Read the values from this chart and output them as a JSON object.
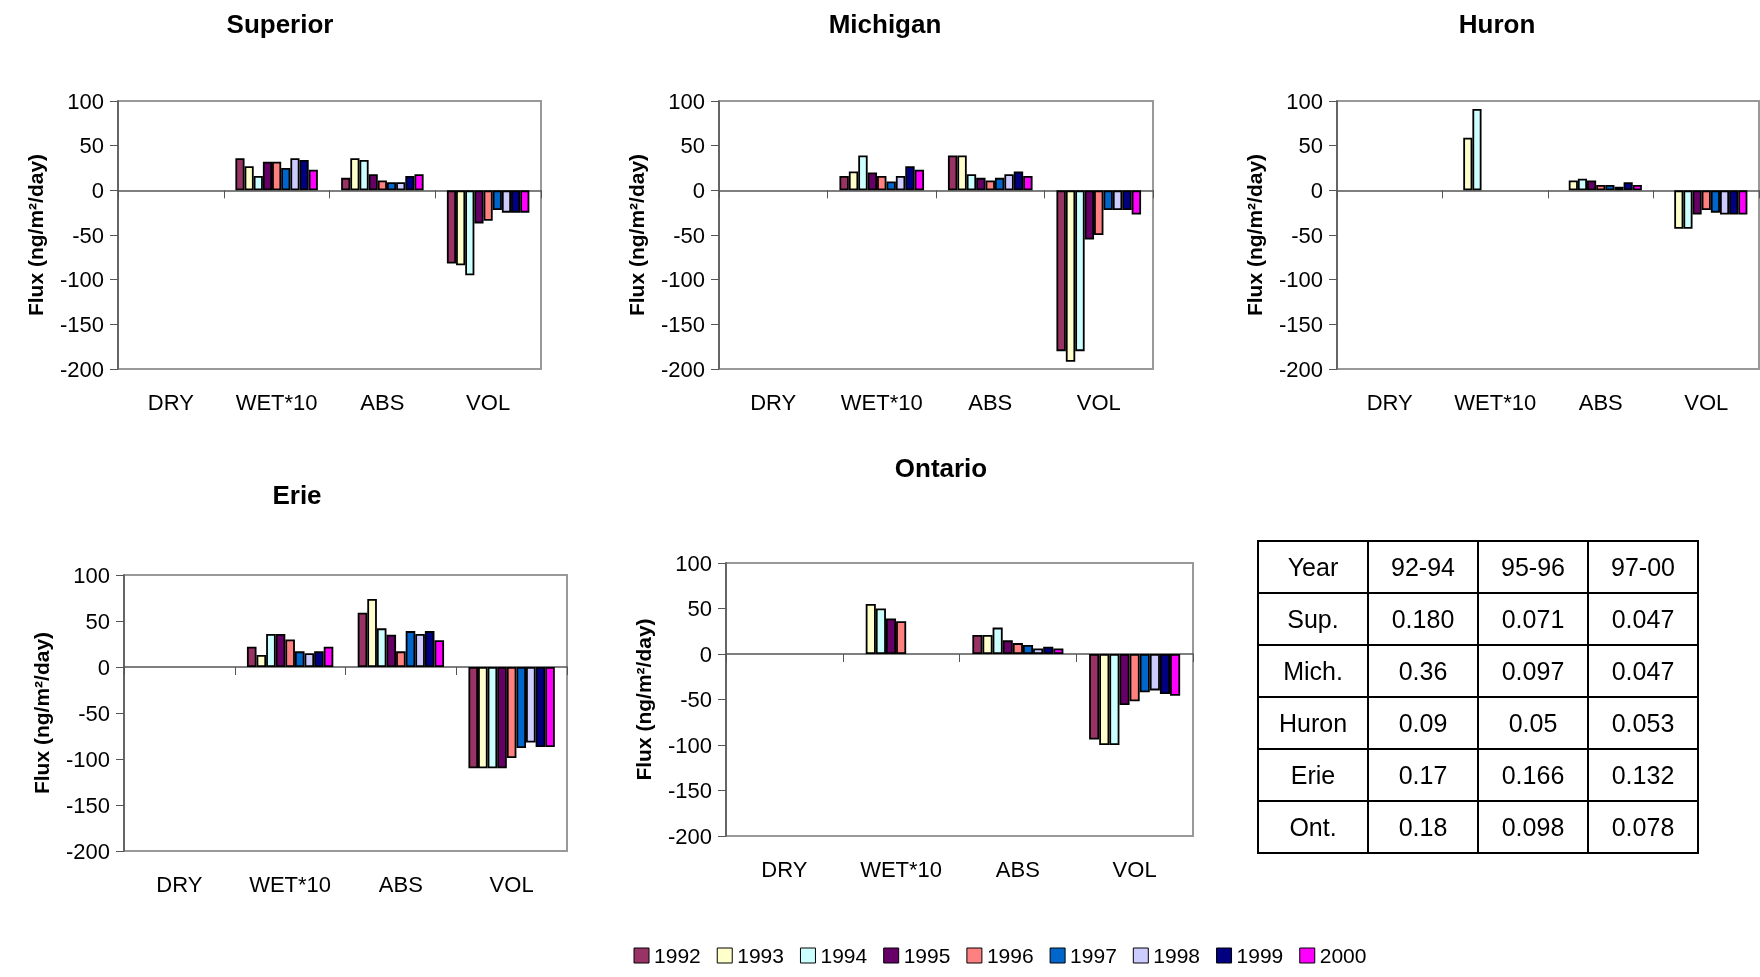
{
  "chart_data": [
    {
      "type": "bar",
      "title": "Superior",
      "ylabel": "Flux (ng/m²/day)",
      "categories": [
        "DRY",
        "WET*10",
        "ABS",
        "VOL"
      ],
      "ylim": [
        -200,
        100
      ],
      "yticks": [
        -200,
        -150,
        -100,
        -50,
        0,
        50,
        100
      ],
      "series": [
        {
          "color": "#993366",
          "values": [
            null,
            36,
            14,
            -82
          ]
        },
        {
          "color": "#ffffcc",
          "values": [
            null,
            27,
            36,
            -84
          ]
        },
        {
          "color": "#ccffff",
          "values": [
            null,
            16,
            34,
            -95
          ]
        },
        {
          "color": "#660066",
          "values": [
            null,
            32,
            18,
            -37
          ]
        },
        {
          "color": "#ff8080",
          "values": [
            null,
            32,
            11,
            -34
          ]
        },
        {
          "color": "#0066cc",
          "values": [
            null,
            25,
            9,
            -22
          ]
        },
        {
          "color": "#ccccff",
          "values": [
            null,
            36,
            9,
            -25
          ]
        },
        {
          "color": "#000080",
          "values": [
            null,
            34,
            16,
            -25
          ]
        },
        {
          "color": "#ff00ff",
          "values": [
            null,
            23,
            18,
            -25
          ]
        }
      ]
    },
    {
      "type": "bar",
      "title": "Michigan",
      "ylabel": "Flux (ng/m²/day)",
      "categories": [
        "DRY",
        "WET*10",
        "ABS",
        "VOL"
      ],
      "ylim": [
        -200,
        100
      ],
      "yticks": [
        -200,
        -150,
        -100,
        -50,
        0,
        50,
        100
      ],
      "series": [
        {
          "color": "#993366",
          "values": [
            null,
            16,
            39,
            -180
          ]
        },
        {
          "color": "#ffffcc",
          "values": [
            null,
            21,
            39,
            -192
          ]
        },
        {
          "color": "#ccffff",
          "values": [
            null,
            39,
            18,
            -180
          ]
        },
        {
          "color": "#660066",
          "values": [
            null,
            20,
            14,
            -55
          ]
        },
        {
          "color": "#ff8080",
          "values": [
            null,
            16,
            11,
            -50
          ]
        },
        {
          "color": "#0066cc",
          "values": [
            null,
            10,
            14,
            -22
          ]
        },
        {
          "color": "#ccccff",
          "values": [
            null,
            16,
            18,
            -22
          ]
        },
        {
          "color": "#000080",
          "values": [
            null,
            27,
            21,
            -22
          ]
        },
        {
          "color": "#ff00ff",
          "values": [
            null,
            23,
            16,
            -27
          ]
        }
      ]
    },
    {
      "type": "bar",
      "title": "Huron",
      "ylabel": "Flux (ng/m²/day)",
      "categories": [
        "DRY",
        "WET*10",
        "ABS",
        "VOL"
      ],
      "ylim": [
        -200,
        100
      ],
      "yticks": [
        -200,
        -150,
        -100,
        -50,
        0,
        50,
        100
      ],
      "series": [
        {
          "color": "#993366",
          "values": [
            null,
            null,
            null,
            null
          ]
        },
        {
          "color": "#ffffcc",
          "values": [
            null,
            59,
            11,
            -43
          ]
        },
        {
          "color": "#ccffff",
          "values": [
            null,
            91,
            13,
            -43
          ]
        },
        {
          "color": "#660066",
          "values": [
            null,
            null,
            11,
            -27
          ]
        },
        {
          "color": "#ff8080",
          "values": [
            null,
            null,
            6,
            -22
          ]
        },
        {
          "color": "#0066cc",
          "values": [
            null,
            null,
            6,
            -25
          ]
        },
        {
          "color": "#ccccff",
          "values": [
            null,
            null,
            4,
            -27
          ]
        },
        {
          "color": "#000080",
          "values": [
            null,
            null,
            9,
            -27
          ]
        },
        {
          "color": "#ff00ff",
          "values": [
            null,
            null,
            6,
            -27
          ]
        }
      ]
    },
    {
      "type": "bar",
      "title": "Erie",
      "ylabel": "Flux (ng/m²/day)",
      "categories": [
        "DRY",
        "WET*10",
        "ABS",
        "VOL"
      ],
      "ylim": [
        -200,
        100
      ],
      "yticks": [
        -200,
        -150,
        -100,
        -50,
        0,
        50,
        100
      ],
      "series": [
        {
          "color": "#993366",
          "values": [
            null,
            22,
            59,
            -110
          ]
        },
        {
          "color": "#ffffcc",
          "values": [
            null,
            13,
            74,
            -110
          ]
        },
        {
          "color": "#ccffff",
          "values": [
            null,
            36,
            42,
            -110
          ]
        },
        {
          "color": "#660066",
          "values": [
            null,
            36,
            35,
            -110
          ]
        },
        {
          "color": "#ff8080",
          "values": [
            null,
            30,
            17,
            -99
          ]
        },
        {
          "color": "#0066cc",
          "values": [
            null,
            17,
            39,
            -88
          ]
        },
        {
          "color": "#ccccff",
          "values": [
            null,
            15,
            36,
            -82
          ]
        },
        {
          "color": "#000080",
          "values": [
            null,
            17,
            39,
            -87
          ]
        },
        {
          "color": "#ff00ff",
          "values": [
            null,
            22,
            29,
            -87
          ]
        }
      ]
    },
    {
      "type": "bar",
      "title": "Ontario",
      "ylabel": "Flux (ng/m²/day)",
      "categories": [
        "DRY",
        "WET*10",
        "ABS",
        "VOL"
      ],
      "ylim": [
        -200,
        100
      ],
      "yticks": [
        -200,
        -150,
        -100,
        -50,
        0,
        50,
        100
      ],
      "legend": "bottom",
      "series": [
        {
          "name": "1992",
          "color": "#993366",
          "values": [
            null,
            null,
            21,
            -94
          ]
        },
        {
          "name": "1993",
          "color": "#ffffcc",
          "values": [
            null,
            55,
            21,
            -100
          ]
        },
        {
          "name": "1994",
          "color": "#ccffff",
          "values": [
            null,
            50,
            29,
            -100
          ]
        },
        {
          "name": "1995",
          "color": "#660066",
          "values": [
            null,
            39,
            15,
            -56
          ]
        },
        {
          "name": "1996",
          "color": "#ff8080",
          "values": [
            null,
            36,
            12,
            -52
          ]
        },
        {
          "name": "1997",
          "color": "#0066cc",
          "values": [
            null,
            null,
            10,
            -42
          ]
        },
        {
          "name": "1998",
          "color": "#ccccff",
          "values": [
            null,
            null,
            6,
            -40
          ]
        },
        {
          "name": "1999",
          "color": "#000080",
          "values": [
            null,
            null,
            8,
            -44
          ]
        },
        {
          "name": "2000",
          "color": "#ff00ff",
          "values": [
            null,
            null,
            6,
            -46
          ]
        }
      ]
    },
    {
      "type": "other",
      "ylabel": "Year",
      "categories": [
        "92-94",
        "95-96",
        "97-00"
      ],
      "y_categories": [
        "Sup.",
        "Mich.",
        "Huron",
        "Erie",
        "Ont."
      ],
      "cell_labels": [
        [
          "0.180",
          "0.071",
          "0.047"
        ],
        [
          "0.36",
          "0.097",
          "0.047"
        ],
        [
          "0.09",
          "0.05",
          "0.053"
        ],
        [
          "0.17",
          "0.166",
          "0.132"
        ],
        [
          "0.18",
          "0.098",
          "0.078"
        ]
      ]
    }
  ]
}
